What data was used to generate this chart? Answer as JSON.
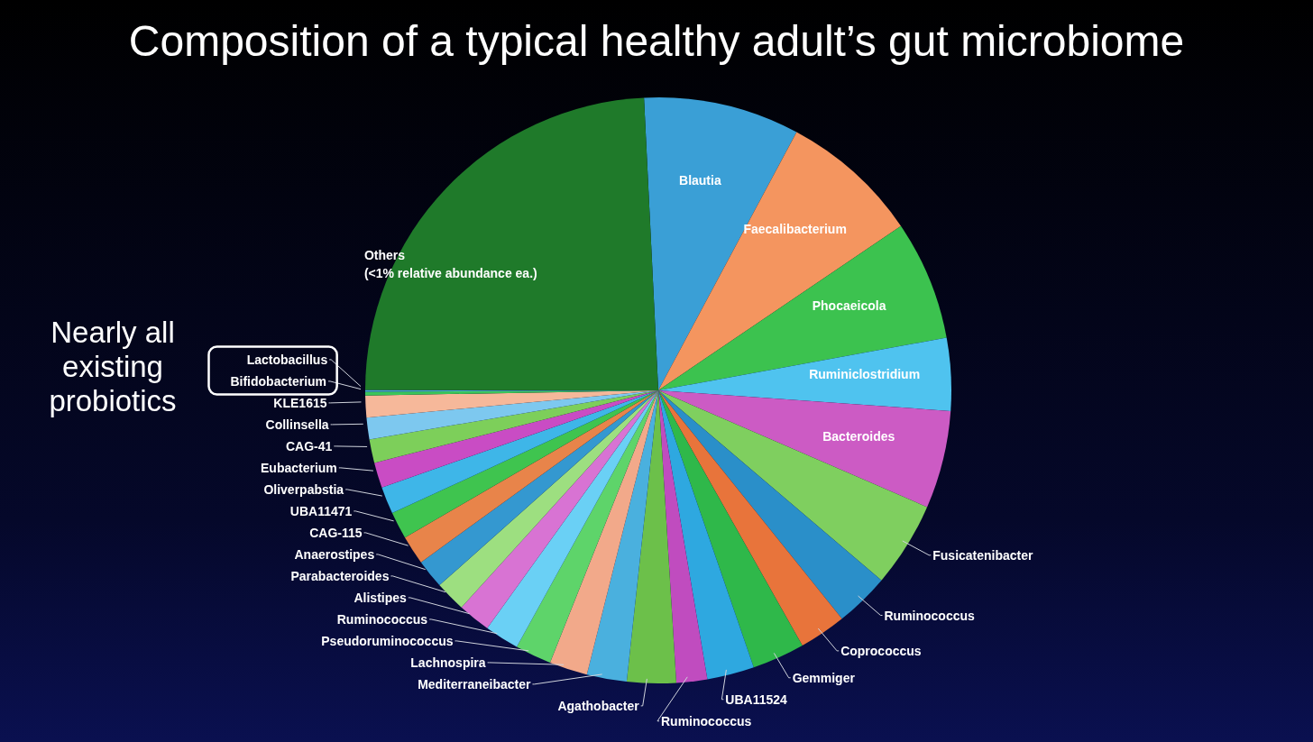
{
  "chart_data": {
    "type": "pie",
    "title": "Composition of a typical healthy adult’s gut microbiome",
    "categories": [
      "Blautia",
      "Faecalibacterium",
      "Phocaeicola",
      "Ruminiclostridium",
      "Bacteroides",
      "Fusicatenibacter",
      "Ruminococcus",
      "Coprococcus",
      "Gemmiger",
      "UBA11524",
      "Ruminococcus",
      "Agathobacter",
      "Mediterraneibacter",
      "Lachnospira",
      "Pseudoruminococcus",
      "Ruminococcus",
      "Alistipes",
      "Parabacteroides",
      "Anaerostipes",
      "CAG-115",
      "UBA11471",
      "Oliverpabstia",
      "Eubacterium",
      "CAG-41",
      "Collinsella",
      "KLE1615",
      "Bifidobacterium",
      "Lactobacillus",
      "Others\n(<1% relative abundance ea.)"
    ],
    "values": [
      8.6,
      7.7,
      6.6,
      4.0,
      5.4,
      4.7,
      3.0,
      2.6,
      2.9,
      2.6,
      1.7,
      2.7,
      2.2,
      2.1,
      2.0,
      1.9,
      1.8,
      1.7,
      1.6,
      1.6,
      1.5,
      1.5,
      1.4,
      1.3,
      1.2,
      1.2,
      0.2,
      0.1,
      24.2
    ],
    "colors": [
      "#3a9fd6",
      "#f4955f",
      "#3cc24f",
      "#4fc3ef",
      "#cc5bc4",
      "#7fcf5f",
      "#2a8fc9",
      "#e8743b",
      "#2fb84a",
      "#2ea8e0",
      "#c04cbf",
      "#6cc04a",
      "#4ab0de",
      "#f2a98a",
      "#5ed46a",
      "#6ad0f5",
      "#d873d3",
      "#9ddf80",
      "#3498d0",
      "#e8844a",
      "#3fc44f",
      "#3eb6e8",
      "#c94cc4",
      "#7dcf5a",
      "#7dc8ef",
      "#f6b89a",
      "#3ac55a",
      "#4aa8e0",
      "#1f7a2a"
    ],
    "annotations": [
      "Nearly all existing probiotics"
    ]
  }
}
